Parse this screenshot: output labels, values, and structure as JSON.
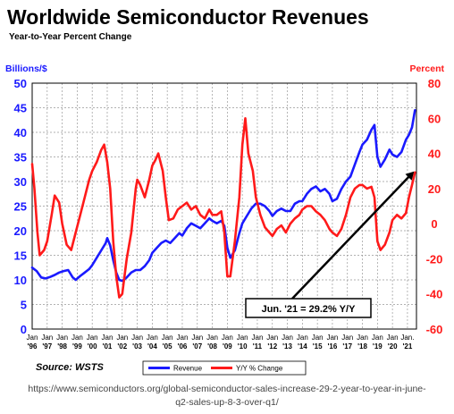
{
  "title": "Worldwide Semiconductor Revenues",
  "subtitle": "Year-to-Year Percent Change",
  "source": "Source: WSTS",
  "url_line1": "https://www.semiconductors.org/global-semiconductor-sales-increase-29-2-year-to-year-in-june-",
  "url_line2": "q2-sales-up-8-3-over-q1/",
  "chart_data": {
    "type": "line",
    "title": "Worldwide Semiconductor Revenues",
    "subtitle": "Year-to-Year Percent Change",
    "ylabel_left": "Billions/$",
    "ylabel_right": "Percent",
    "ylim_left": [
      0,
      50
    ],
    "ylim_right": [
      -60,
      80
    ],
    "yticks_left": [
      0,
      5,
      10,
      15,
      20,
      25,
      30,
      35,
      40,
      45,
      50
    ],
    "yticks_right": [
      -60,
      -40,
      -20,
      0,
      20,
      40,
      60,
      80
    ],
    "xlim": [
      1996.0,
      2021.6
    ],
    "x_tick_labels": [
      {
        "top": "Jan",
        "bottom": "'96"
      },
      {
        "top": "Jan",
        "bottom": "'97"
      },
      {
        "top": "Jan",
        "bottom": "'98"
      },
      {
        "top": "Jan",
        "bottom": "'99"
      },
      {
        "top": "Jan",
        "bottom": "'00"
      },
      {
        "top": "Jan",
        "bottom": "'01"
      },
      {
        "top": "Jan",
        "bottom": "'02"
      },
      {
        "top": "Jan",
        "bottom": "'03"
      },
      {
        "top": "Jan",
        "bottom": "'04"
      },
      {
        "top": "Jan",
        "bottom": "'05"
      },
      {
        "top": "Jan",
        "bottom": "'06"
      },
      {
        "top": "Jan",
        "bottom": "'07"
      },
      {
        "top": "Jan",
        "bottom": "'08"
      },
      {
        "top": "Jan",
        "bottom": "'09"
      },
      {
        "top": "Jan",
        "bottom": "'10"
      },
      {
        "top": "Jan",
        "bottom": "'11"
      },
      {
        "top": "Jan",
        "bottom": "'12"
      },
      {
        "top": "Jan",
        "bottom": "'13"
      },
      {
        "top": "Jan",
        "bottom": "'14"
      },
      {
        "top": "Jan",
        "bottom": "'15"
      },
      {
        "top": "Jan",
        "bottom": "'16"
      },
      {
        "top": "Jan",
        "bottom": "'17"
      },
      {
        "top": "Jan",
        "bottom": "'18"
      },
      {
        "top": "Jan",
        "bottom": "'19"
      },
      {
        "top": "Jan",
        "bottom": "'20"
      },
      {
        "top": "Jan.",
        "bottom": "'21"
      }
    ],
    "grid": true,
    "legend": "bottom-center",
    "series": [
      {
        "name": "Revenue",
        "color": "#1a1aff",
        "axis": "left",
        "points": [
          [
            1996.0,
            12.5
          ],
          [
            1996.3,
            11.8
          ],
          [
            1996.6,
            10.5
          ],
          [
            1996.9,
            10.3
          ],
          [
            1997.2,
            10.6
          ],
          [
            1997.5,
            11.0
          ],
          [
            1997.8,
            11.5
          ],
          [
            1998.1,
            11.8
          ],
          [
            1998.4,
            12.0
          ],
          [
            1998.7,
            10.5
          ],
          [
            1998.9,
            10.0
          ],
          [
            1999.2,
            10.8
          ],
          [
            1999.5,
            11.5
          ],
          [
            1999.8,
            12.2
          ],
          [
            2000.0,
            13.0
          ],
          [
            2000.3,
            14.5
          ],
          [
            2000.6,
            16.0
          ],
          [
            2000.9,
            17.5
          ],
          [
            2001.0,
            18.5
          ],
          [
            2001.2,
            17.0
          ],
          [
            2001.4,
            14.0
          ],
          [
            2001.6,
            11.5
          ],
          [
            2001.8,
            10.0
          ],
          [
            2002.0,
            9.8
          ],
          [
            2002.3,
            10.5
          ],
          [
            2002.6,
            11.5
          ],
          [
            2002.9,
            12.0
          ],
          [
            2003.2,
            12.0
          ],
          [
            2003.5,
            12.8
          ],
          [
            2003.8,
            14.0
          ],
          [
            2004.0,
            15.5
          ],
          [
            2004.3,
            16.5
          ],
          [
            2004.6,
            17.5
          ],
          [
            2004.9,
            18.0
          ],
          [
            2005.2,
            17.5
          ],
          [
            2005.5,
            18.5
          ],
          [
            2005.8,
            19.5
          ],
          [
            2006.0,
            19.0
          ],
          [
            2006.3,
            20.5
          ],
          [
            2006.6,
            21.5
          ],
          [
            2006.9,
            21.0
          ],
          [
            2007.2,
            20.5
          ],
          [
            2007.5,
            21.5
          ],
          [
            2007.8,
            22.5
          ],
          [
            2008.0,
            22.0
          ],
          [
            2008.3,
            21.5
          ],
          [
            2008.6,
            22.0
          ],
          [
            2008.8,
            21.0
          ],
          [
            2009.0,
            16.5
          ],
          [
            2009.2,
            14.5
          ],
          [
            2009.5,
            16.0
          ],
          [
            2009.8,
            19.5
          ],
          [
            2010.0,
            21.5
          ],
          [
            2010.3,
            23.0
          ],
          [
            2010.6,
            24.5
          ],
          [
            2010.9,
            25.5
          ],
          [
            2011.2,
            25.5
          ],
          [
            2011.5,
            25.0
          ],
          [
            2011.8,
            24.0
          ],
          [
            2012.0,
            23.0
          ],
          [
            2012.3,
            24.0
          ],
          [
            2012.6,
            24.5
          ],
          [
            2012.9,
            24.0
          ],
          [
            2013.2,
            24.0
          ],
          [
            2013.5,
            25.5
          ],
          [
            2013.8,
            26.0
          ],
          [
            2014.0,
            26.0
          ],
          [
            2014.3,
            27.5
          ],
          [
            2014.6,
            28.5
          ],
          [
            2014.9,
            29.0
          ],
          [
            2015.2,
            28.0
          ],
          [
            2015.5,
            28.5
          ],
          [
            2015.8,
            27.5
          ],
          [
            2016.0,
            26.0
          ],
          [
            2016.3,
            26.5
          ],
          [
            2016.6,
            28.5
          ],
          [
            2016.9,
            30.0
          ],
          [
            2017.2,
            31.0
          ],
          [
            2017.5,
            33.5
          ],
          [
            2017.8,
            36.0
          ],
          [
            2018.0,
            37.5
          ],
          [
            2018.3,
            38.5
          ],
          [
            2018.6,
            40.5
          ],
          [
            2018.8,
            41.5
          ],
          [
            2019.0,
            35.0
          ],
          [
            2019.2,
            33.0
          ],
          [
            2019.5,
            34.5
          ],
          [
            2019.8,
            36.5
          ],
          [
            2020.0,
            35.5
          ],
          [
            2020.3,
            35.0
          ],
          [
            2020.6,
            36.0
          ],
          [
            2020.9,
            38.5
          ],
          [
            2021.1,
            39.5
          ],
          [
            2021.3,
            41.0
          ],
          [
            2021.5,
            44.5
          ]
        ]
      },
      {
        "name": "Y/Y % Change",
        "color": "#ff1a1a",
        "axis": "right",
        "points": [
          [
            1996.0,
            34
          ],
          [
            1996.15,
            20
          ],
          [
            1996.35,
            -5
          ],
          [
            1996.5,
            -18
          ],
          [
            1996.8,
            -15
          ],
          [
            1997.0,
            -10
          ],
          [
            1997.3,
            5
          ],
          [
            1997.5,
            16
          ],
          [
            1997.8,
            12
          ],
          [
            1998.0,
            0
          ],
          [
            1998.3,
            -12
          ],
          [
            1998.6,
            -15
          ],
          [
            1998.9,
            -5
          ],
          [
            1999.2,
            5
          ],
          [
            1999.5,
            15
          ],
          [
            1999.8,
            25
          ],
          [
            2000.0,
            30
          ],
          [
            2000.3,
            35
          ],
          [
            2000.6,
            42
          ],
          [
            2000.8,
            45
          ],
          [
            2001.0,
            35
          ],
          [
            2001.2,
            20
          ],
          [
            2001.4,
            -10
          ],
          [
            2001.6,
            -30
          ],
          [
            2001.8,
            -42
          ],
          [
            2002.0,
            -40
          ],
          [
            2002.3,
            -20
          ],
          [
            2002.6,
            -5
          ],
          [
            2002.9,
            20
          ],
          [
            2003.0,
            25
          ],
          [
            2003.2,
            22
          ],
          [
            2003.5,
            15
          ],
          [
            2003.8,
            25
          ],
          [
            2004.0,
            33
          ],
          [
            2004.2,
            36
          ],
          [
            2004.4,
            40
          ],
          [
            2004.7,
            30
          ],
          [
            2004.9,
            15
          ],
          [
            2005.1,
            2
          ],
          [
            2005.4,
            3
          ],
          [
            2005.7,
            8
          ],
          [
            2006.0,
            10
          ],
          [
            2006.3,
            12
          ],
          [
            2006.6,
            8
          ],
          [
            2006.9,
            10
          ],
          [
            2007.2,
            5
          ],
          [
            2007.5,
            3
          ],
          [
            2007.8,
            8
          ],
          [
            2008.0,
            5
          ],
          [
            2008.3,
            5
          ],
          [
            2008.6,
            7
          ],
          [
            2008.8,
            -5
          ],
          [
            2009.0,
            -30
          ],
          [
            2009.2,
            -30
          ],
          [
            2009.5,
            -10
          ],
          [
            2009.8,
            15
          ],
          [
            2010.0,
            45
          ],
          [
            2010.2,
            60
          ],
          [
            2010.4,
            40
          ],
          [
            2010.7,
            30
          ],
          [
            2010.9,
            15
          ],
          [
            2011.2,
            5
          ],
          [
            2011.5,
            -2
          ],
          [
            2011.8,
            -5
          ],
          [
            2012.0,
            -7
          ],
          [
            2012.3,
            -3
          ],
          [
            2012.6,
            -1
          ],
          [
            2012.9,
            -5
          ],
          [
            2013.2,
            0
          ],
          [
            2013.5,
            3
          ],
          [
            2013.8,
            5
          ],
          [
            2014.0,
            8
          ],
          [
            2014.3,
            10
          ],
          [
            2014.6,
            10
          ],
          [
            2014.9,
            7
          ],
          [
            2015.2,
            5
          ],
          [
            2015.5,
            2
          ],
          [
            2015.8,
            -3
          ],
          [
            2016.0,
            -5
          ],
          [
            2016.3,
            -7
          ],
          [
            2016.6,
            -3
          ],
          [
            2016.9,
            5
          ],
          [
            2017.2,
            15
          ],
          [
            2017.5,
            20
          ],
          [
            2017.8,
            22
          ],
          [
            2018.0,
            22
          ],
          [
            2018.3,
            20
          ],
          [
            2018.6,
            21
          ],
          [
            2018.8,
            15
          ],
          [
            2019.0,
            -10
          ],
          [
            2019.2,
            -15
          ],
          [
            2019.5,
            -12
          ],
          [
            2019.8,
            -5
          ],
          [
            2020.0,
            2
          ],
          [
            2020.3,
            5
          ],
          [
            2020.6,
            3
          ],
          [
            2020.9,
            6
          ],
          [
            2021.1,
            15
          ],
          [
            2021.3,
            22
          ],
          [
            2021.5,
            29.2
          ]
        ]
      }
    ],
    "annotation": {
      "text": "Jun. '21 = 29.2% Y/Y",
      "x": 2021.5,
      "y_right": 29.2
    }
  }
}
